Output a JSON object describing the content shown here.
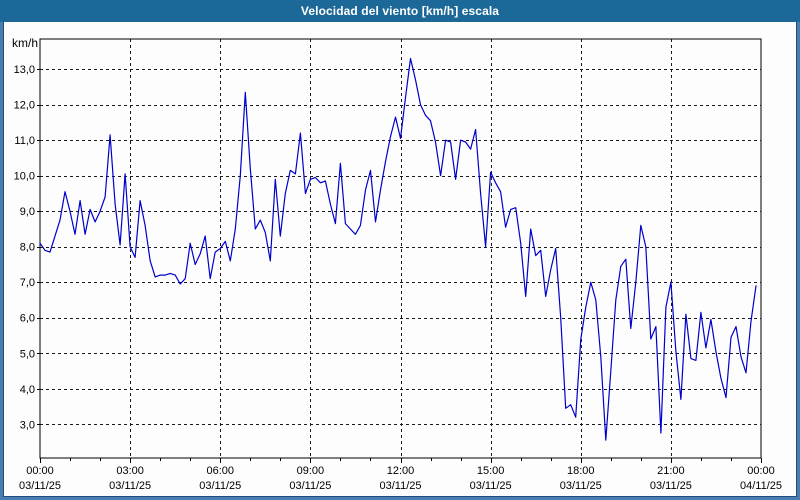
{
  "window": {
    "title": "Velocidad del viento [km/h] escala"
  },
  "colors": {
    "titlebar": "#1C6899",
    "frame": "#4B7DB2",
    "frame_inner": "#1A4E7E",
    "line": "#0000CC",
    "grid": "#1A1A1A",
    "axis": "#000000",
    "background": "#FDFDFD",
    "title_text": "#FFFFFF",
    "label_text": "#000000"
  },
  "chart_data": {
    "type": "line",
    "title": "Velocidad del viento [km/h] escala",
    "ylabel": "km/h",
    "xlabel": "",
    "legend": "none",
    "grid": "dashed",
    "ylim": [
      2.05,
      13.85
    ],
    "y_ticks": [
      3,
      4,
      5,
      6,
      7,
      8,
      9,
      10,
      11,
      12,
      13
    ],
    "y_tick_labels": [
      "3,0",
      "4,0",
      "5,0",
      "6,0",
      "7,0",
      "8,0",
      "9,0",
      "10,0",
      "11,0",
      "12,0",
      "13,0"
    ],
    "x_range_hours": 24,
    "x_minor_tick_hours": 1,
    "x_ticks": [
      {
        "hour": 0,
        "time": "00:00",
        "date": "03/11/25"
      },
      {
        "hour": 3,
        "time": "03:00",
        "date": "03/11/25"
      },
      {
        "hour": 6,
        "time": "06:00",
        "date": "03/11/25"
      },
      {
        "hour": 9,
        "time": "09:00",
        "date": "03/11/25"
      },
      {
        "hour": 12,
        "time": "12:00",
        "date": "03/11/25"
      },
      {
        "hour": 15,
        "time": "15:00",
        "date": "03/11/25"
      },
      {
        "hour": 18,
        "time": "18:00",
        "date": "03/11/25"
      },
      {
        "hour": 21,
        "time": "21:00",
        "date": "03/11/25"
      },
      {
        "hour": 24,
        "time": "00:00",
        "date": "04/11/25"
      }
    ],
    "series_name": "Velocidad del viento",
    "units": "km/h",
    "start_time": "00:00",
    "interval_minutes": 10,
    "values": [
      8.1,
      7.9,
      7.85,
      8.3,
      8.75,
      9.55,
      9.0,
      8.35,
      9.3,
      8.35,
      9.05,
      8.7,
      9.0,
      9.4,
      11.15,
      9.2,
      8.05,
      10.05,
      8.0,
      7.7,
      9.3,
      8.6,
      7.6,
      7.15,
      7.2,
      7.2,
      7.25,
      7.2,
      6.95,
      7.1,
      8.1,
      7.5,
      7.8,
      8.3,
      7.1,
      7.85,
      7.95,
      8.15,
      7.6,
      8.5,
      10.0,
      12.35,
      10.2,
      8.5,
      8.75,
      8.4,
      7.6,
      9.9,
      8.3,
      9.5,
      10.15,
      10.05,
      11.2,
      9.5,
      9.9,
      9.95,
      9.8,
      9.85,
      9.2,
      8.65,
      10.35,
      8.65,
      8.5,
      8.35,
      8.6,
      9.6,
      10.15,
      8.7,
      9.6,
      10.4,
      11.1,
      11.65,
      11.05,
      12.2,
      13.3,
      12.7,
      12.0,
      11.7,
      11.55,
      10.95,
      10.0,
      11.0,
      10.95,
      9.9,
      11.0,
      10.95,
      10.75,
      11.3,
      9.5,
      8.0,
      10.1,
      9.8,
      9.55,
      8.55,
      9.05,
      9.1,
      8.1,
      6.6,
      8.5,
      7.75,
      7.9,
      6.6,
      7.35,
      7.95,
      6.0,
      3.45,
      3.55,
      3.2,
      5.4,
      6.3,
      7.0,
      6.5,
      4.9,
      2.55,
      4.5,
      6.5,
      7.45,
      7.65,
      5.7,
      7.0,
      8.6,
      8.0,
      5.4,
      5.75,
      2.75,
      6.3,
      7.0,
      5.05,
      3.7,
      6.1,
      4.85,
      4.8,
      6.15,
      5.15,
      5.95,
      5.05,
      4.3,
      3.75,
      5.45,
      5.75,
      4.9,
      4.45,
      5.9,
      6.9
    ]
  }
}
